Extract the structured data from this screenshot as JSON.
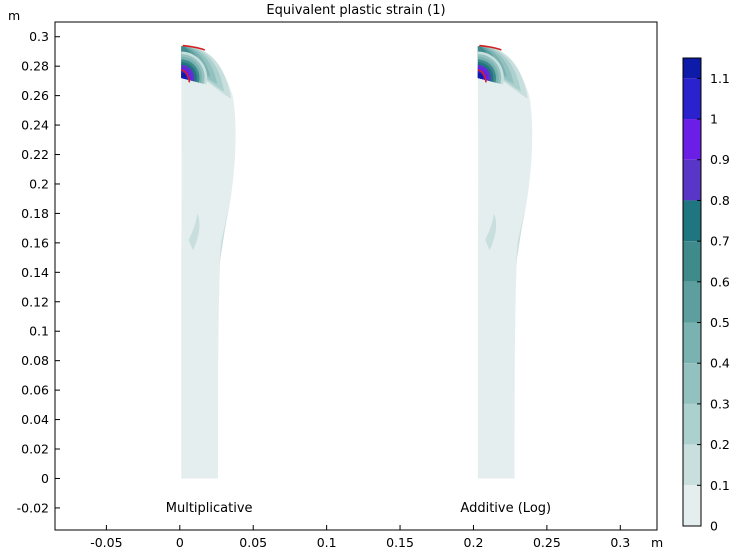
{
  "chart_data": {
    "type": "contour",
    "title": "Equivalent plastic strain (1)",
    "x_unit": "m",
    "y_unit": "m",
    "xlim": [
      -0.085,
      0.325
    ],
    "ylim": [
      -0.035,
      0.31
    ],
    "x_ticks": [
      -0.05,
      0,
      0.05,
      0.1,
      0.15,
      0.2,
      0.25,
      0.3
    ],
    "x_tick_labels": [
      "-0.05",
      "0",
      "0.05",
      "0.1",
      "0.15",
      "0.2",
      "0.25",
      "0.3"
    ],
    "y_ticks": [
      -0.02,
      0,
      0.02,
      0.04,
      0.06,
      0.08,
      0.1,
      0.12,
      0.14,
      0.16,
      0.18,
      0.2,
      0.22,
      0.24,
      0.26,
      0.28,
      0.3
    ],
    "y_tick_labels": [
      "-0.02",
      "0",
      "0.02",
      "0.04",
      "0.06",
      "0.08",
      "0.1",
      "0.12",
      "0.14",
      "0.16",
      "0.18",
      "0.2",
      "0.22",
      "0.24",
      "0.26",
      "0.28",
      "0.3"
    ],
    "grid": false,
    "annotations": [
      {
        "text": "Multiplicative",
        "x": 0.02,
        "y": -0.02
      },
      {
        "text": "Additive (Log)",
        "x": 0.222,
        "y": -0.02
      }
    ],
    "colorbar": {
      "min": 0,
      "max": 1.1,
      "tick_values": [
        0,
        0.1,
        0.2,
        0.3,
        0.4,
        0.5,
        0.6,
        0.7,
        0.8,
        0.9,
        1,
        1.1
      ],
      "tick_labels": [
        "0",
        "0.1",
        "0.2",
        "0.3",
        "0.4",
        "0.5",
        "0.6",
        "0.7",
        "0.8",
        "0.9",
        "1",
        "1.1"
      ],
      "levels": [
        {
          "from": 0.0,
          "to": 0.1,
          "color": "#e4eeee"
        },
        {
          "from": 0.1,
          "to": 0.2,
          "color": "#c8dfde"
        },
        {
          "from": 0.2,
          "to": 0.3,
          "color": "#acd0ce"
        },
        {
          "from": 0.3,
          "to": 0.4,
          "color": "#93c1bf"
        },
        {
          "from": 0.4,
          "to": 0.5,
          "color": "#79b2b0"
        },
        {
          "from": 0.5,
          "to": 0.6,
          "color": "#5c9f9e"
        },
        {
          "from": 0.6,
          "to": 0.7,
          "color": "#3f8b8c"
        },
        {
          "from": 0.7,
          "to": 0.8,
          "color": "#1f7580"
        },
        {
          "from": 0.8,
          "to": 0.9,
          "color": "#5a36c8"
        },
        {
          "from": 0.9,
          "to": 1.0,
          "color": "#6a1ee6"
        },
        {
          "from": 1.0,
          "to": 1.1,
          "color": "#2a22cc"
        },
        {
          "from": 1.1,
          "to": 1.2,
          "color": "#0e1aa8"
        }
      ]
    },
    "contour_bands": [
      {
        "name": "multiplicative",
        "x_offset": 0
      },
      {
        "name": "additive-log",
        "x_offset": 0.202
      }
    ],
    "colors": {
      "plastic_zone_edge": "#d42020",
      "background": "#ffffff",
      "frame": "#000000"
    }
  }
}
